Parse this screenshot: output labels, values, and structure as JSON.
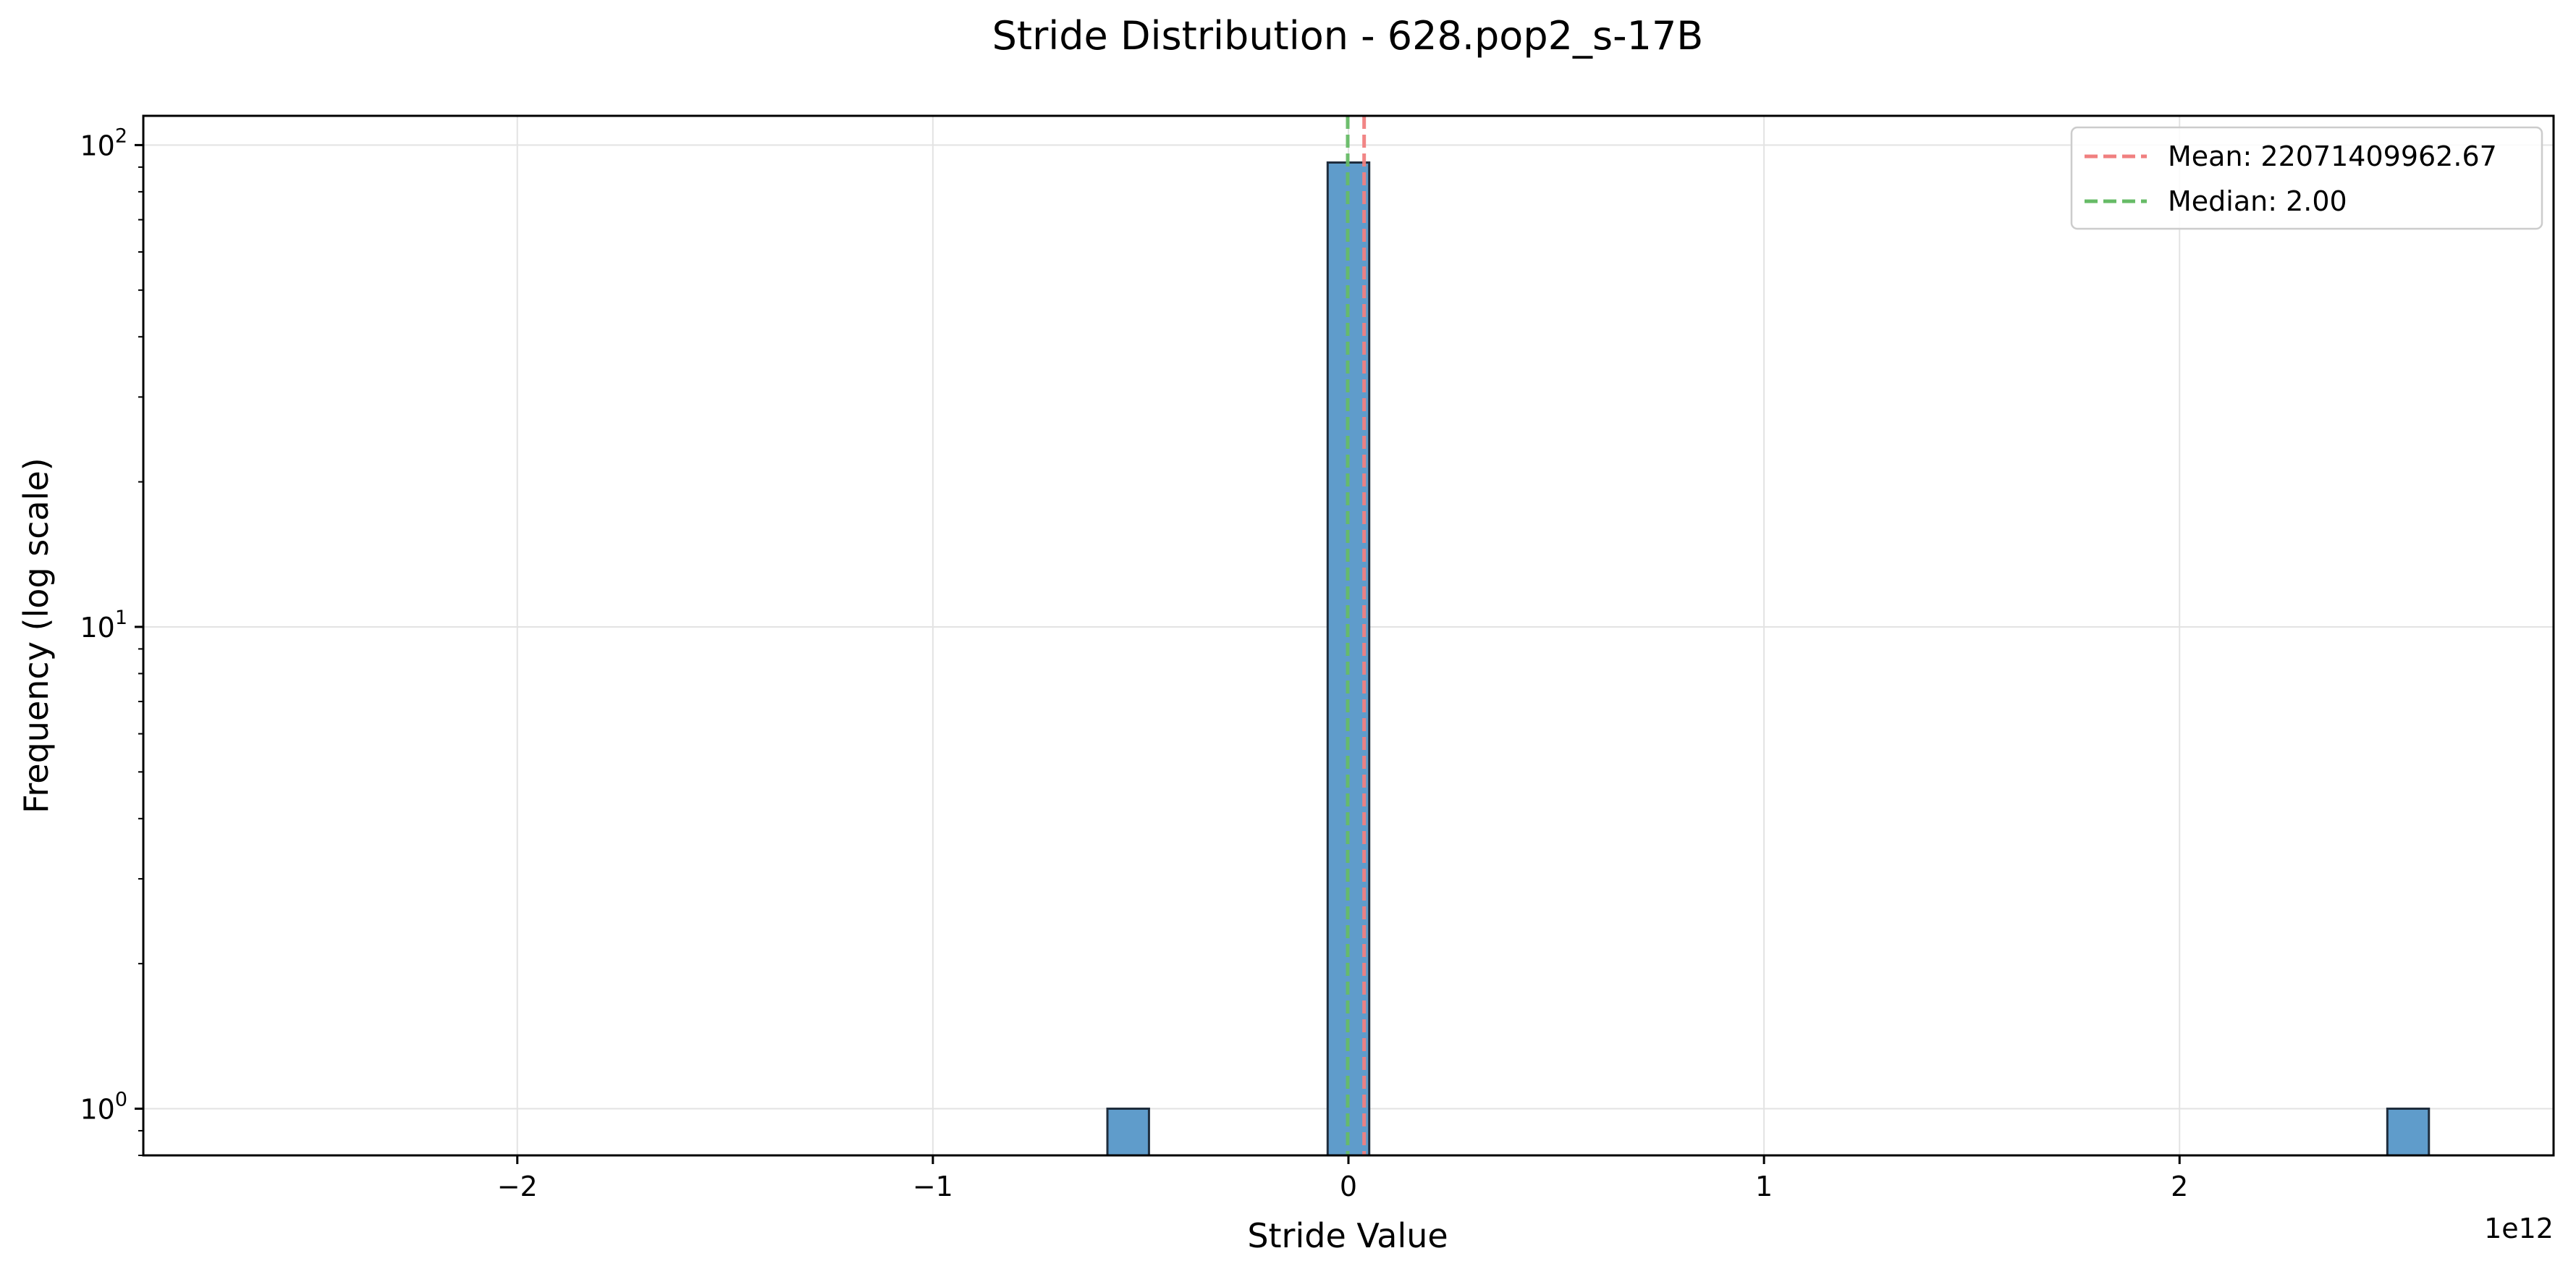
{
  "chart_data": {
    "type": "bar",
    "title": "Stride Distribution - 628.pop2_s-17B",
    "xlabel": "Stride Value",
    "ylabel": "Frequency (log scale)",
    "x_offset_text": "1e12",
    "x_scale": "linear",
    "y_scale": "log",
    "xlim": [
      -2900000000000.0,
      2900000000000.0
    ],
    "ylim": [
      0.8,
      115
    ],
    "grid": true,
    "legend_position": "top-right",
    "x_ticks": [
      {
        "value": -2000000000000.0,
        "label": "−2"
      },
      {
        "value": -1000000000000.0,
        "label": "−1"
      },
      {
        "value": 0,
        "label": "0"
      },
      {
        "value": 1000000000000.0,
        "label": "1"
      },
      {
        "value": 2000000000000.0,
        "label": "2"
      }
    ],
    "y_ticks": [
      {
        "value": 1,
        "base": "10",
        "exp": "0"
      },
      {
        "value": 10,
        "base": "10",
        "exp": "1"
      },
      {
        "value": 100,
        "base": "10",
        "exp": "2"
      }
    ],
    "bars": [
      {
        "x_start": -580000000000.0,
        "x_end": -480000000000.0,
        "count": 1
      },
      {
        "x_start": -50000000000.0,
        "x_end": 50000000000.0,
        "count": 92
      },
      {
        "x_start": 2500000000000.0,
        "x_end": 2600000000000.0,
        "count": 1
      }
    ],
    "reference_lines": [
      {
        "name": "Mean: 22071409962.67",
        "value": 22071409962.67,
        "color": "#f08080"
      },
      {
        "name": "Median: 2.00",
        "value": 2.0,
        "color": "#66bb66"
      }
    ],
    "bar_color": "#5f9ccb",
    "bar_edge_color": "#1f2d3d"
  }
}
